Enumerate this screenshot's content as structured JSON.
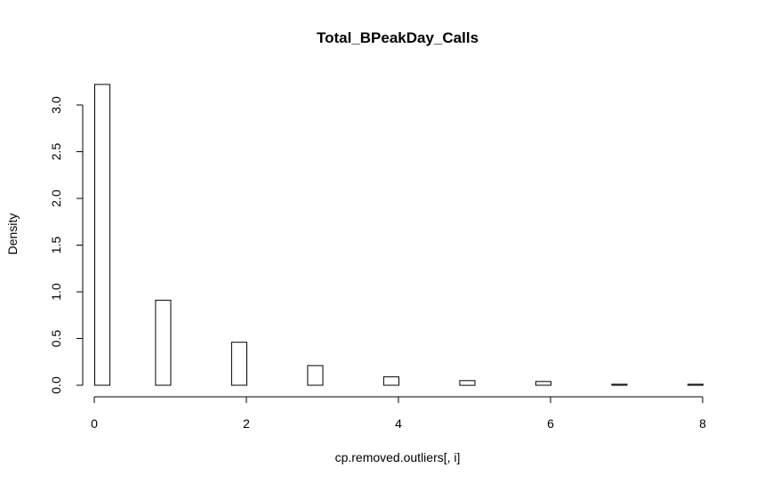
{
  "chart_data": {
    "type": "bar",
    "title": "Total_BPeakDay_Calls",
    "xlabel": "cp.removed.outliers[, i]",
    "ylabel": "Density",
    "x": [
      0.1,
      0.9,
      1.9,
      2.9,
      3.9,
      4.9,
      5.9,
      6.9,
      7.9
    ],
    "values": [
      3.22,
      0.91,
      0.46,
      0.21,
      0.09,
      0.05,
      0.04,
      0.01,
      0.01
    ],
    "bar_width": 0.2,
    "xlim": [
      0,
      8
    ],
    "ylim": [
      0,
      3.0
    ],
    "xticks": [
      0,
      2,
      4,
      6,
      8
    ],
    "xtick_labels": [
      "0",
      "2",
      "4",
      "6",
      "8"
    ],
    "yticks": [
      0,
      0.5,
      1.0,
      1.5,
      2.0,
      2.5,
      3.0
    ],
    "ytick_labels": [
      "0.0",
      "0.5",
      "1.0",
      "1.5",
      "2.0",
      "2.5",
      "3.0"
    ],
    "grid": false,
    "legend": "none"
  }
}
